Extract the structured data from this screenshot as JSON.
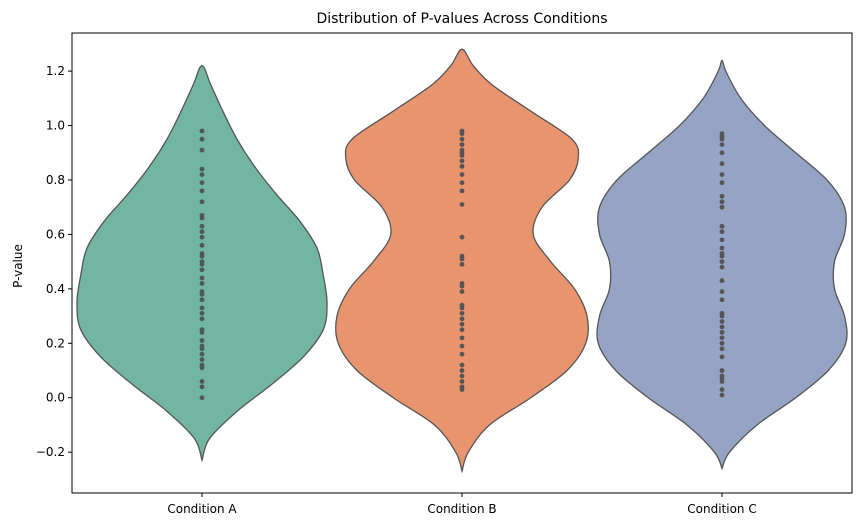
{
  "chart_data": {
    "type": "violin",
    "title": "Distribution of P-values Across Conditions",
    "xlabel": "",
    "ylabel": "P-value",
    "ylim": [
      -0.35,
      1.34
    ],
    "yticks": [
      -0.2,
      0.0,
      0.2,
      0.4,
      0.6,
      0.8,
      1.0,
      1.2
    ],
    "ytick_labels": [
      "−0.2",
      "0.0",
      "0.2",
      "0.4",
      "0.6",
      "0.8",
      "1.0",
      "1.2"
    ],
    "categories": [
      "Condition A",
      "Condition B",
      "Condition C"
    ],
    "grid": false,
    "series": [
      {
        "category": "Condition A",
        "color": "#72b5a1",
        "range": [
          -0.23,
          1.22
        ],
        "density": [
          [
            -0.23,
            0.0
          ],
          [
            -0.15,
            0.06
          ],
          [
            -0.05,
            0.28
          ],
          [
            0.05,
            0.56
          ],
          [
            0.15,
            0.81
          ],
          [
            0.25,
            0.97
          ],
          [
            0.35,
            1.0
          ],
          [
            0.45,
            0.97
          ],
          [
            0.55,
            0.92
          ],
          [
            0.65,
            0.78
          ],
          [
            0.75,
            0.59
          ],
          [
            0.85,
            0.42
          ],
          [
            0.95,
            0.28
          ],
          [
            1.05,
            0.17
          ],
          [
            1.15,
            0.07
          ],
          [
            1.22,
            0.0
          ]
        ],
        "points": [
          0.0,
          0.04,
          0.06,
          0.11,
          0.12,
          0.14,
          0.16,
          0.18,
          0.19,
          0.21,
          0.24,
          0.25,
          0.29,
          0.31,
          0.33,
          0.36,
          0.38,
          0.39,
          0.42,
          0.44,
          0.47,
          0.49,
          0.5,
          0.52,
          0.53,
          0.56,
          0.59,
          0.61,
          0.63,
          0.66,
          0.67,
          0.72,
          0.76,
          0.79,
          0.82,
          0.84,
          0.91,
          0.95,
          0.98
        ]
      },
      {
        "category": "Condition B",
        "color": "#e8956f",
        "range": [
          -0.27,
          1.28
        ],
        "density": [
          [
            -0.27,
            0.0
          ],
          [
            -0.2,
            0.05
          ],
          [
            -0.1,
            0.22
          ],
          [
            0.0,
            0.55
          ],
          [
            0.1,
            0.84
          ],
          [
            0.2,
            0.99
          ],
          [
            0.3,
            1.0
          ],
          [
            0.4,
            0.9
          ],
          [
            0.5,
            0.71
          ],
          [
            0.6,
            0.57
          ],
          [
            0.7,
            0.64
          ],
          [
            0.8,
            0.86
          ],
          [
            0.88,
            0.93
          ],
          [
            0.95,
            0.88
          ],
          [
            1.05,
            0.56
          ],
          [
            1.15,
            0.24
          ],
          [
            1.22,
            0.09
          ],
          [
            1.28,
            0.0
          ]
        ],
        "points": [
          0.03,
          0.04,
          0.06,
          0.08,
          0.1,
          0.12,
          0.16,
          0.19,
          0.22,
          0.25,
          0.27,
          0.29,
          0.31,
          0.33,
          0.34,
          0.39,
          0.41,
          0.42,
          0.49,
          0.51,
          0.52,
          0.59,
          0.71,
          0.76,
          0.79,
          0.82,
          0.85,
          0.87,
          0.89,
          0.9,
          0.91,
          0.93,
          0.95,
          0.97,
          0.98
        ]
      },
      {
        "category": "Condition C",
        "color": "#95a4c4",
        "range": [
          -0.26,
          1.24
        ],
        "density": [
          [
            -0.26,
            0.0
          ],
          [
            -0.2,
            0.06
          ],
          [
            -0.1,
            0.28
          ],
          [
            0.0,
            0.59
          ],
          [
            0.1,
            0.85
          ],
          [
            0.2,
            0.99
          ],
          [
            0.3,
            0.98
          ],
          [
            0.4,
            0.9
          ],
          [
            0.5,
            0.9
          ],
          [
            0.6,
            0.98
          ],
          [
            0.7,
            0.98
          ],
          [
            0.8,
            0.84
          ],
          [
            0.9,
            0.59
          ],
          [
            1.0,
            0.34
          ],
          [
            1.1,
            0.15
          ],
          [
            1.2,
            0.03
          ],
          [
            1.24,
            0.0
          ]
        ],
        "points": [
          0.01,
          0.03,
          0.06,
          0.07,
          0.08,
          0.1,
          0.15,
          0.18,
          0.2,
          0.22,
          0.24,
          0.26,
          0.28,
          0.3,
          0.31,
          0.36,
          0.39,
          0.43,
          0.48,
          0.5,
          0.52,
          0.53,
          0.55,
          0.58,
          0.61,
          0.63,
          0.7,
          0.72,
          0.74,
          0.79,
          0.82,
          0.86,
          0.9,
          0.93,
          0.95,
          0.96,
          0.97
        ]
      }
    ],
    "point_color": "#555555",
    "outline_color": "#555555"
  }
}
